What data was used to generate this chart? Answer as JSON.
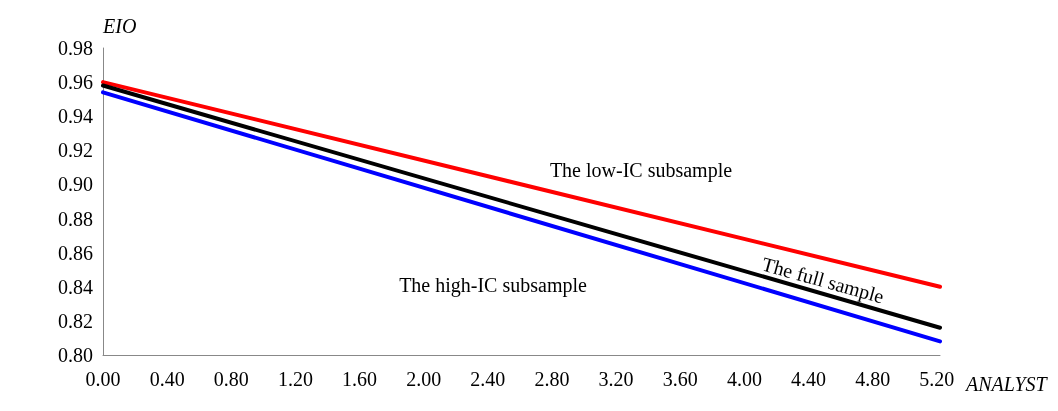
{
  "chart_data": {
    "type": "line",
    "xlabel": "ANALYST",
    "ylabel": "EIO",
    "xlim": [
      0,
      5.22
    ],
    "xticks": [
      {
        "value": 0,
        "label": "0.00"
      },
      {
        "value": 0.4,
        "label": "0.40"
      },
      {
        "value": 0.8,
        "label": "0.80"
      },
      {
        "value": 1.2,
        "label": "1.20"
      },
      {
        "value": 1.6,
        "label": "1.60"
      },
      {
        "value": 2,
        "label": "2.00"
      },
      {
        "value": 2.4,
        "label": "2.40"
      },
      {
        "value": 2.8,
        "label": "2.80"
      },
      {
        "value": 3.2,
        "label": "3.20"
      },
      {
        "value": 3.6,
        "label": "3.60"
      },
      {
        "value": 4,
        "label": "4.00"
      },
      {
        "value": 4.4,
        "label": "4.40"
      },
      {
        "value": 4.8,
        "label": "4.80"
      },
      {
        "value": 5.2,
        "label": "5.20"
      }
    ],
    "ylim": [
      0.8,
      0.98
    ],
    "yticks": [
      {
        "value": 0.8,
        "label": "0.80"
      },
      {
        "value": 0.82,
        "label": "0.82"
      },
      {
        "value": 0.84,
        "label": "0.84"
      },
      {
        "value": 0.86,
        "label": "0.86"
      },
      {
        "value": 0.88,
        "label": "0.88"
      },
      {
        "value": 0.9,
        "label": "0.90"
      },
      {
        "value": 0.92,
        "label": "0.92"
      },
      {
        "value": 0.94,
        "label": "0.94"
      },
      {
        "value": 0.96,
        "label": "0.96"
      },
      {
        "value": 0.98,
        "label": "0.98"
      }
    ],
    "x": [
      0,
      5.22
    ],
    "series": [
      {
        "name": "The low-IC subsample",
        "color": "#ff0000",
        "values": [
          0.96,
          0.84
        ]
      },
      {
        "name": "The full sample",
        "color": "#000000",
        "values": [
          0.958,
          0.816
        ]
      },
      {
        "name": "The high-IC subsample",
        "color": "#0000ff",
        "values": [
          0.954,
          0.808
        ]
      }
    ],
    "grid": false,
    "legend": false,
    "marker": "none",
    "line_style": "solid"
  }
}
